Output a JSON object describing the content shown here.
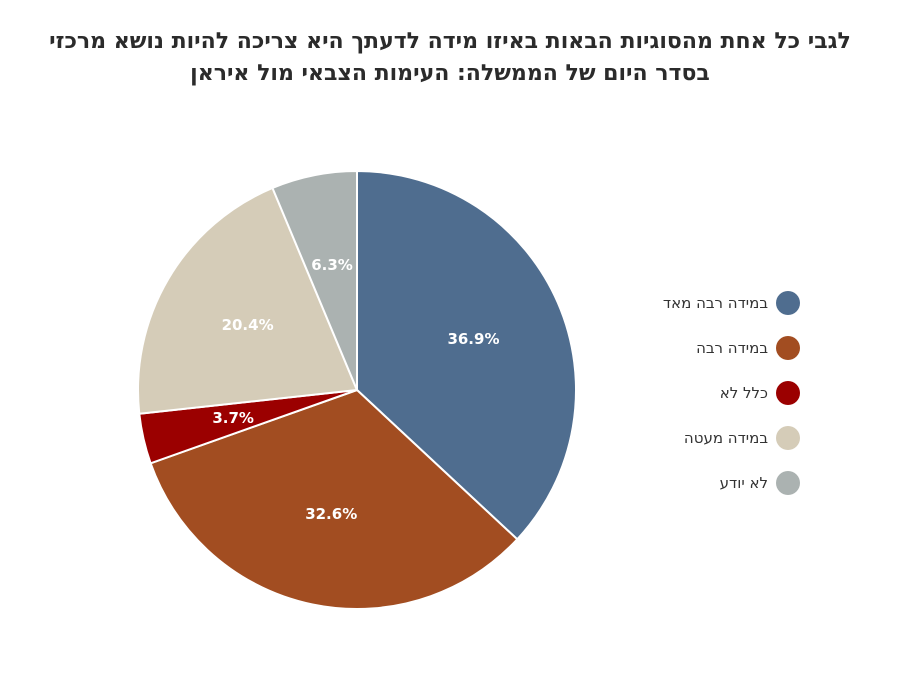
{
  "title": {
    "line1": "לגבי כל אחת מהסוגיות הבאות באיזו מידה לדעתך היא צריכה להיות נושא מרכזי",
    "line2": "בסדר היום של הממשלה: העימות הצבאי מול איראן"
  },
  "chart_data": {
    "type": "pie",
    "title": "לגבי כל אחת מהסוגיות הבאות באיזו מידה לדעתך היא צריכה להיות נושא מרכזי בסדר היום של הממשלה: העימות הצבאי מול איראן",
    "legend_position": "right",
    "slices": [
      {
        "label": "במידה רבה מאד",
        "value": 36.9,
        "display": "36.9%",
        "color": "#4f6d8f"
      },
      {
        "label": "במידה רבה",
        "value": 32.6,
        "display": "32.6%",
        "color": "#a24d21"
      },
      {
        "label": "כלל לא",
        "value": 3.7,
        "display": "3.7%",
        "color": "#9b0000"
      },
      {
        "label": "במידה מעטה",
        "value": 20.4,
        "display": "20.4%",
        "color": "#d5ccb8"
      },
      {
        "label": "לא יודע",
        "value": 6.3,
        "display": "6.3%",
        "color": "#abb2b1"
      }
    ]
  }
}
